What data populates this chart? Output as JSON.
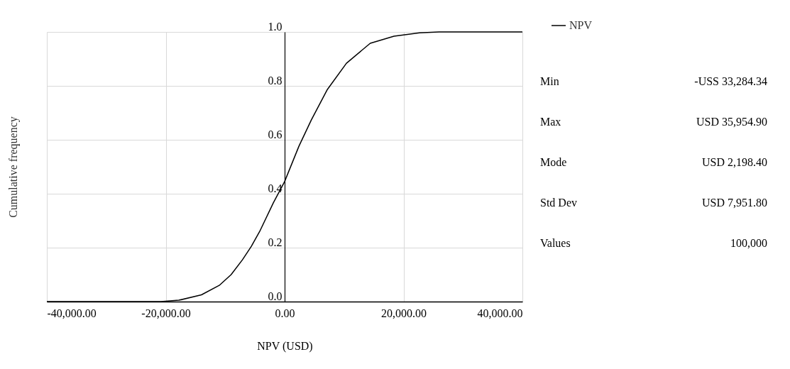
{
  "chart_data": {
    "type": "line",
    "xlabel": "NPV (USD)",
    "ylabel": "Cumulative  frequency",
    "x": [
      -40000,
      -20800,
      -17800,
      -14000,
      -11000,
      -9000,
      -7100,
      -5600,
      -4200,
      -1900,
      0,
      2400,
      4500,
      7200,
      10400,
      14400,
      18400,
      22700,
      26000,
      40000
    ],
    "series": [
      {
        "name": "NPV",
        "color": "#000000",
        "values": [
          0,
          0,
          0.005,
          0.025,
          0.06,
          0.1,
          0.155,
          0.205,
          0.26,
          0.366,
          0.445,
          0.576,
          0.674,
          0.787,
          0.884,
          0.958,
          0.984,
          0.997,
          1.0,
          1.0
        ]
      }
    ],
    "xlim": [
      -40000,
      40000
    ],
    "xticks": [
      {
        "value": -40000,
        "label": "-40,000.00"
      },
      {
        "value": -20000,
        "label": "-20,000.00"
      },
      {
        "value": 0,
        "label": "0.00"
      },
      {
        "value": 20000,
        "label": "20,000.00"
      },
      {
        "value": 40000,
        "label": "40,000.00"
      }
    ],
    "ylim": [
      0,
      1
    ],
    "yticks": [
      {
        "value": 0,
        "label": "0.0"
      },
      {
        "value": 0.2,
        "label": "0.2"
      },
      {
        "value": 0.4,
        "label": "0.4"
      },
      {
        "value": 0.6,
        "label": "0.6"
      },
      {
        "value": 0.8,
        "label": "0.8"
      },
      {
        "value": 1,
        "label": "1.0"
      }
    ],
    "grid": true,
    "legend": "top right",
    "marker": "none",
    "line_style": "solid",
    "annotations": [
      "Min",
      "-USS 33,284.34",
      "Max",
      "USD 35,954.90",
      "Mode",
      "USD 2,198.40",
      "Std Dev",
      "USD 7,951.80",
      "Values",
      "100,000"
    ]
  }
}
